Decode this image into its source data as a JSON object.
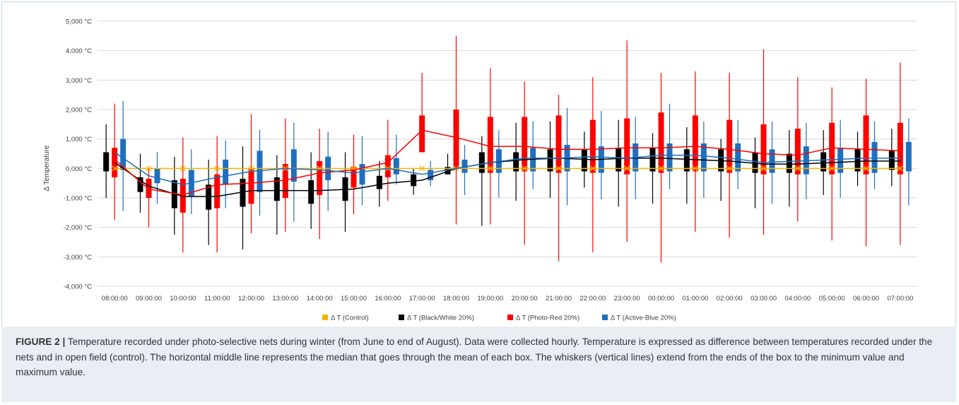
{
  "figure": {
    "label": "FIGURE 2 |",
    "caption": " Temperature recorded under photo-selective nets during winter (from June to end of August). Data were collected hourly. Temperature is expressed as difference between temperatures recorded under the nets and in open field (control). The horizontal middle line represents the median that goes through the mean of each box. The whiskers (vertical lines) extend from the ends of the box to the minimum value and maximum value."
  },
  "chart_data": {
    "type": "box",
    "ylabel": "Δ Temperature",
    "ylim": [
      -4000,
      5000
    ],
    "y_ticks": [
      5000,
      4000,
      3000,
      2000,
      1000,
      0,
      -1000,
      -2000,
      -3000,
      -4000
    ],
    "y_tick_labels": [
      "5,000 °C",
      "4,000 °C",
      "3,000 °C",
      "2,000 °C",
      "1,000 °C",
      "0,000 °C",
      "-1,000 °C",
      "-2,000 °C",
      "-3,000 °C",
      "-4,000 °C"
    ],
    "grid": true,
    "legend_position": "bottom",
    "categories": [
      "08:00:00",
      "09:00:00",
      "10:00:00",
      "11:00:00",
      "12:00:00",
      "13:00:00",
      "14:00:00",
      "15:00:00",
      "16:00:00",
      "17:00:00",
      "18:00:00",
      "19:00:00",
      "20:00:00",
      "21:00:00",
      "22:00:00",
      "23:00:00",
      "00:00:00",
      "01:00:00",
      "02:00:00",
      "03:00:00",
      "04:00:00",
      "05:00:00",
      "06:00:00",
      "07:00:00"
    ],
    "series": [
      {
        "name": "Δ T (Control)",
        "color": "#f4b400",
        "values": [
          0,
          0,
          0,
          0,
          0,
          0,
          0,
          0,
          0,
          0,
          0,
          0,
          0,
          0,
          0,
          0,
          0,
          0,
          0,
          0,
          0,
          0,
          0,
          0
        ]
      },
      {
        "name": "Δ T (Black/White 20%)",
        "color": "#000000",
        "median": [
          200,
          -600,
          -950,
          -950,
          -750,
          -750,
          -750,
          -700,
          -500,
          -400,
          0,
          200,
          300,
          350,
          300,
          350,
          350,
          300,
          250,
          150,
          150,
          200,
          250,
          250
        ],
        "q1": [
          -100,
          -800,
          -1350,
          -1400,
          -1300,
          -1100,
          -1200,
          -1100,
          -700,
          -600,
          -200,
          -150,
          -100,
          -100,
          -100,
          -100,
          -100,
          -100,
          -100,
          -150,
          -150,
          -100,
          -100,
          -50
        ],
        "q3": [
          550,
          -300,
          -400,
          -550,
          -350,
          -300,
          -400,
          -300,
          -250,
          -200,
          50,
          550,
          550,
          650,
          650,
          700,
          700,
          650,
          650,
          550,
          500,
          550,
          650,
          600
        ],
        "min": [
          -1000,
          -1500,
          -2250,
          -2600,
          -2750,
          -2250,
          -2050,
          -2150,
          -1300,
          -900,
          -200,
          -1950,
          -1100,
          -1000,
          -650,
          -1300,
          -1200,
          -1200,
          -1100,
          -1350,
          -1300,
          -900,
          -600,
          -600
        ],
        "max": [
          1500,
          500,
          400,
          300,
          750,
          450,
          550,
          550,
          250,
          0,
          500,
          1100,
          1550,
          1600,
          1250,
          1650,
          1200,
          1400,
          1000,
          1050,
          1300,
          1300,
          1250,
          1350
        ]
      },
      {
        "name": "Δ T (Photo-Red 20%)",
        "color": "#ff0000",
        "median": [
          300,
          -700,
          -900,
          -550,
          -500,
          -400,
          -150,
          -50,
          200,
          1300,
          1050,
          750,
          750,
          650,
          650,
          700,
          700,
          750,
          650,
          500,
          450,
          700,
          650,
          600
        ],
        "q1": [
          -300,
          -1000,
          -1500,
          -1350,
          -1200,
          -1000,
          -900,
          -650,
          -300,
          550,
          0,
          -150,
          -100,
          -150,
          -150,
          -200,
          -150,
          -100,
          -150,
          -200,
          -200,
          -200,
          -200,
          -200
        ],
        "q3": [
          700,
          -350,
          -350,
          -200,
          0,
          150,
          250,
          50,
          450,
          1800,
          2000,
          1750,
          1750,
          1800,
          1650,
          1700,
          1900,
          1800,
          1650,
          1500,
          1350,
          1550,
          1800,
          1550
        ],
        "min": [
          -1750,
          -2000,
          -2850,
          -2850,
          -2200,
          -2150,
          -2400,
          -1550,
          -1100,
          650,
          -1900,
          -1900,
          -2600,
          -3150,
          -2850,
          -2500,
          -3200,
          -2150,
          -2350,
          -2250,
          -1800,
          -2450,
          -2650,
          -2600
        ],
        "max": [
          2200,
          0,
          1050,
          1100,
          1850,
          1700,
          1350,
          1150,
          1650,
          3250,
          4500,
          3400,
          2950,
          2500,
          3100,
          4350,
          3250,
          3300,
          3250,
          4050,
          3100,
          2750,
          3050,
          3600
        ]
      },
      {
        "name": "Δ T (Active-Blue 20%)",
        "color": "#1f6fbf",
        "median": [
          550,
          -250,
          -550,
          -300,
          -100,
          0,
          -50,
          -150,
          0,
          -200,
          0,
          200,
          350,
          350,
          400,
          350,
          450,
          450,
          350,
          200,
          250,
          300,
          350,
          350
        ],
        "q1": [
          -50,
          -500,
          -950,
          -550,
          -800,
          -450,
          -400,
          -550,
          -200,
          -400,
          -150,
          -150,
          -100,
          -100,
          -150,
          -100,
          -100,
          -100,
          -100,
          -150,
          -200,
          -150,
          -150,
          -100
        ],
        "q3": [
          1000,
          0,
          -50,
          300,
          600,
          650,
          400,
          150,
          350,
          -50,
          300,
          650,
          700,
          800,
          750,
          850,
          850,
          850,
          850,
          650,
          750,
          700,
          900,
          900
        ],
        "min": [
          -1450,
          -1200,
          -1550,
          -1350,
          -1600,
          -1800,
          -1450,
          -1250,
          -550,
          -600,
          -900,
          -1000,
          -700,
          -1250,
          -1050,
          -1050,
          -700,
          -1000,
          -700,
          -1200,
          -1050,
          -1000,
          -700,
          -1250
        ],
        "max": [
          2300,
          550,
          650,
          950,
          1300,
          1550,
          1250,
          1100,
          1150,
          250,
          800,
          1300,
          1600,
          2050,
          1950,
          1750,
          2200,
          1600,
          1650,
          1600,
          1550,
          1650,
          1600,
          1700
        ]
      }
    ]
  }
}
